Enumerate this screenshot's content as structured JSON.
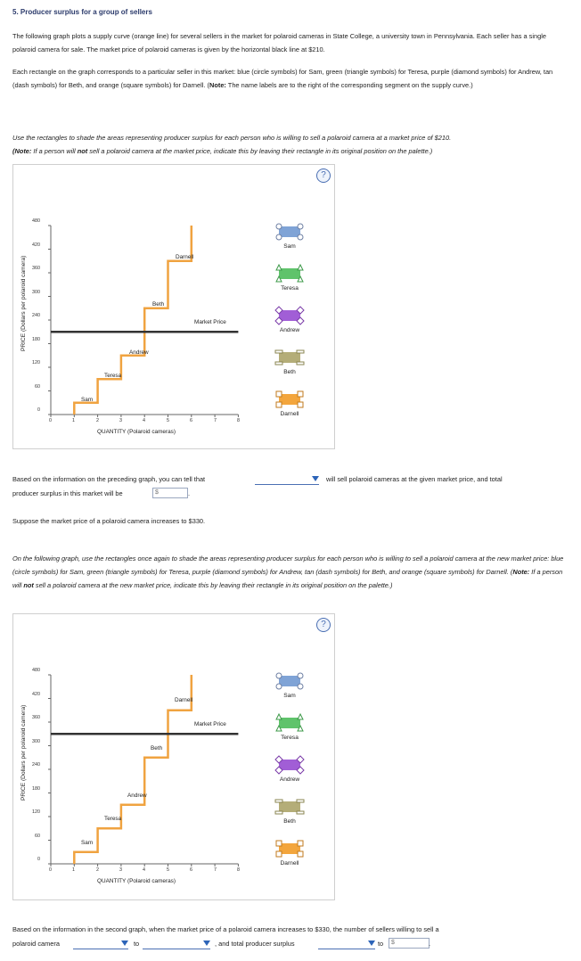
{
  "question": {
    "title": "5. Producer surplus for a group of sellers",
    "intro_1": "The following graph plots a supply curve (orange line) for several sellers in the market for polaroid cameras in State College, a university town in Pennsylvania. Each seller has a single polaroid camera for sale. The market price of polaroid cameras is given by the horizontal black line at $210.",
    "intro_2a": "Each rectangle on the graph corresponds to a particular seller in this market: blue (circle symbols) for Sam, green (triangle symbols) for Teresa, purple (diamond symbols) for Andrew, tan (dash symbols) for Beth, and orange (square symbols) for Darnell. (",
    "intro_2_note": "Note:",
    "intro_2b": " The name labels are to the right of the corresponding segment on the supply curve.)",
    "instr1a": "Use the rectangles to shade the areas representing producer surplus for each person who is willing to sell a polaroid camera at a market price of $210.",
    "instr1_note": "(Note:",
    "instr1b": " If a person will ",
    "instr1_not": "not",
    "instr1c": " sell a polaroid camera at the market price, indicate this by leaving their rectangle in its original position on the palette.)",
    "q1a": "Based on the information on the preceding graph, you can tell that",
    "q1b": "will sell polaroid cameras at the given market price, and total",
    "q1c": "producer surplus in this market will be",
    "dollar": "$",
    "period": ".",
    "suppose": "Suppose the market price of a polaroid camera increases to $330.",
    "instr2a": "On the following graph, use the rectangles once again to shade the areas representing producer surplus for each person who is willing to sell a polaroid camera at the new market price: blue (circle symbols) for Sam, green (triangle symbols) for Teresa, purple (diamond symbols) for Andrew, tan (dash symbols) for Beth, and orange (square symbols) for Darnell. (",
    "instr2_note": "Note:",
    "instr2b": " If a person will ",
    "instr2_not": "not",
    "instr2c": " sell a polaroid camera at the new market price, indicate this by leaving their rectangle in its original position on the palette.)",
    "q2a": "Based on the information in the second graph, when the market price of a polaroid camera increases to $330, the number of sellers willing to sell a",
    "q2b": "polaroid camera",
    "to": "to",
    "q2c": ", and total producer surplus",
    "help": "?"
  },
  "graph": {
    "ylabel": "PRICE (Dollars per polaroid camera)",
    "xlabel": "QUANTITY (Polaroid cameras)",
    "yticks": [
      "480",
      "420",
      "360",
      "300",
      "240",
      "180",
      "120",
      "60",
      "0"
    ],
    "xticks": [
      "0",
      "1",
      "2",
      "3",
      "4",
      "5",
      "6",
      "7",
      "8"
    ],
    "market_label": "Market Price",
    "sellers": [
      "Sam",
      "Teresa",
      "Andrew",
      "Beth",
      "Darnell"
    ]
  },
  "palette": {
    "items": [
      {
        "name": "Sam",
        "color": "#7fa3d6"
      },
      {
        "name": "Teresa",
        "color": "#5fc36b"
      },
      {
        "name": "Andrew",
        "color": "#a15ed6"
      },
      {
        "name": "Beth",
        "color": "#b4ad78"
      },
      {
        "name": "Darnell",
        "color": "#f3a53c"
      }
    ]
  },
  "chart_data": [
    {
      "type": "line",
      "title": "",
      "xlabel": "QUANTITY (Polaroid cameras)",
      "ylabel": "PRICE (Dollars per polaroid camera)",
      "xlim": [
        0,
        8
      ],
      "ylim": [
        0,
        480
      ],
      "series": [
        {
          "name": "Supply",
          "color": "#f0a340",
          "steps": [
            [
              1,
              30
            ],
            [
              2,
              90
            ],
            [
              3,
              150
            ],
            [
              4,
              270
            ],
            [
              5,
              390
            ]
          ]
        },
        {
          "name": "Market Price",
          "color": "#333333",
          "value": 210
        }
      ],
      "segment_labels": [
        "Sam",
        "Teresa",
        "Andrew",
        "Beth",
        "Darnell"
      ]
    },
    {
      "type": "line",
      "title": "",
      "xlabel": "QUANTITY (Polaroid cameras)",
      "ylabel": "PRICE (Dollars per polaroid camera)",
      "xlim": [
        0,
        8
      ],
      "ylim": [
        0,
        480
      ],
      "series": [
        {
          "name": "Supply",
          "color": "#f0a340",
          "steps": [
            [
              1,
              30
            ],
            [
              2,
              90
            ],
            [
              3,
              150
            ],
            [
              4,
              270
            ],
            [
              5,
              390
            ]
          ]
        },
        {
          "name": "Market Price",
          "color": "#333333",
          "value": 330
        }
      ],
      "segment_labels": [
        "Sam",
        "Teresa",
        "Andrew",
        "Beth",
        "Darnell"
      ]
    }
  ]
}
